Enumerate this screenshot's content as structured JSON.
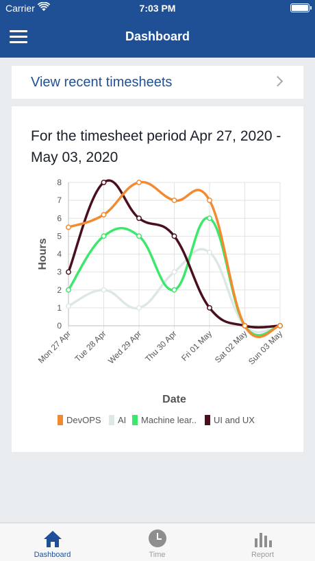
{
  "status_bar": {
    "carrier": "Carrier",
    "time": "7:03 PM"
  },
  "navbar": {
    "title": "Dashboard",
    "menu_icon": "hamburger-menu-icon"
  },
  "recent": {
    "label": "View recent timesheets",
    "icon": "chevron-right-icon"
  },
  "chart_card": {
    "heading": "For the timesheet period Apr 27, 2020 - May 03, 2020"
  },
  "chart_data": {
    "type": "line",
    "title": "",
    "xlabel": "Date",
    "ylabel": "Hours",
    "categories": [
      "Mon 27 Apr",
      "Tue 28 Apr",
      "Wed 29 Apr",
      "Thu 30 Apr",
      "Fri 01 May",
      "Sat 02 May",
      "Sun 03 May"
    ],
    "ylim": [
      0,
      8
    ],
    "yticks": [
      "0",
      "1",
      "2",
      "3",
      "4",
      "5",
      "6",
      "7",
      "8"
    ],
    "grid": true,
    "legend_position": "bottom",
    "series": [
      {
        "name": "DevOPS",
        "color": "#f28a30",
        "values": [
          5.5,
          6.2,
          8,
          7,
          7,
          0,
          0
        ]
      },
      {
        "name": "AI",
        "color": "#dde8e4",
        "values": [
          1.1,
          2,
          1,
          3,
          4.1,
          0,
          0
        ]
      },
      {
        "name": "Machine lear..",
        "color": "#3ae86b",
        "values": [
          2,
          5,
          5,
          2,
          6,
          0,
          0
        ]
      },
      {
        "name": "UI and UX",
        "color": "#4a0f1c",
        "values": [
          3,
          8,
          6,
          5,
          1,
          0,
          0
        ]
      }
    ]
  },
  "tabbar": {
    "tabs": [
      {
        "label": "Dashboard",
        "icon": "home-icon"
      },
      {
        "label": "Time",
        "icon": "clock-icon"
      },
      {
        "label": "Report",
        "icon": "bar-chart-icon"
      }
    ]
  }
}
